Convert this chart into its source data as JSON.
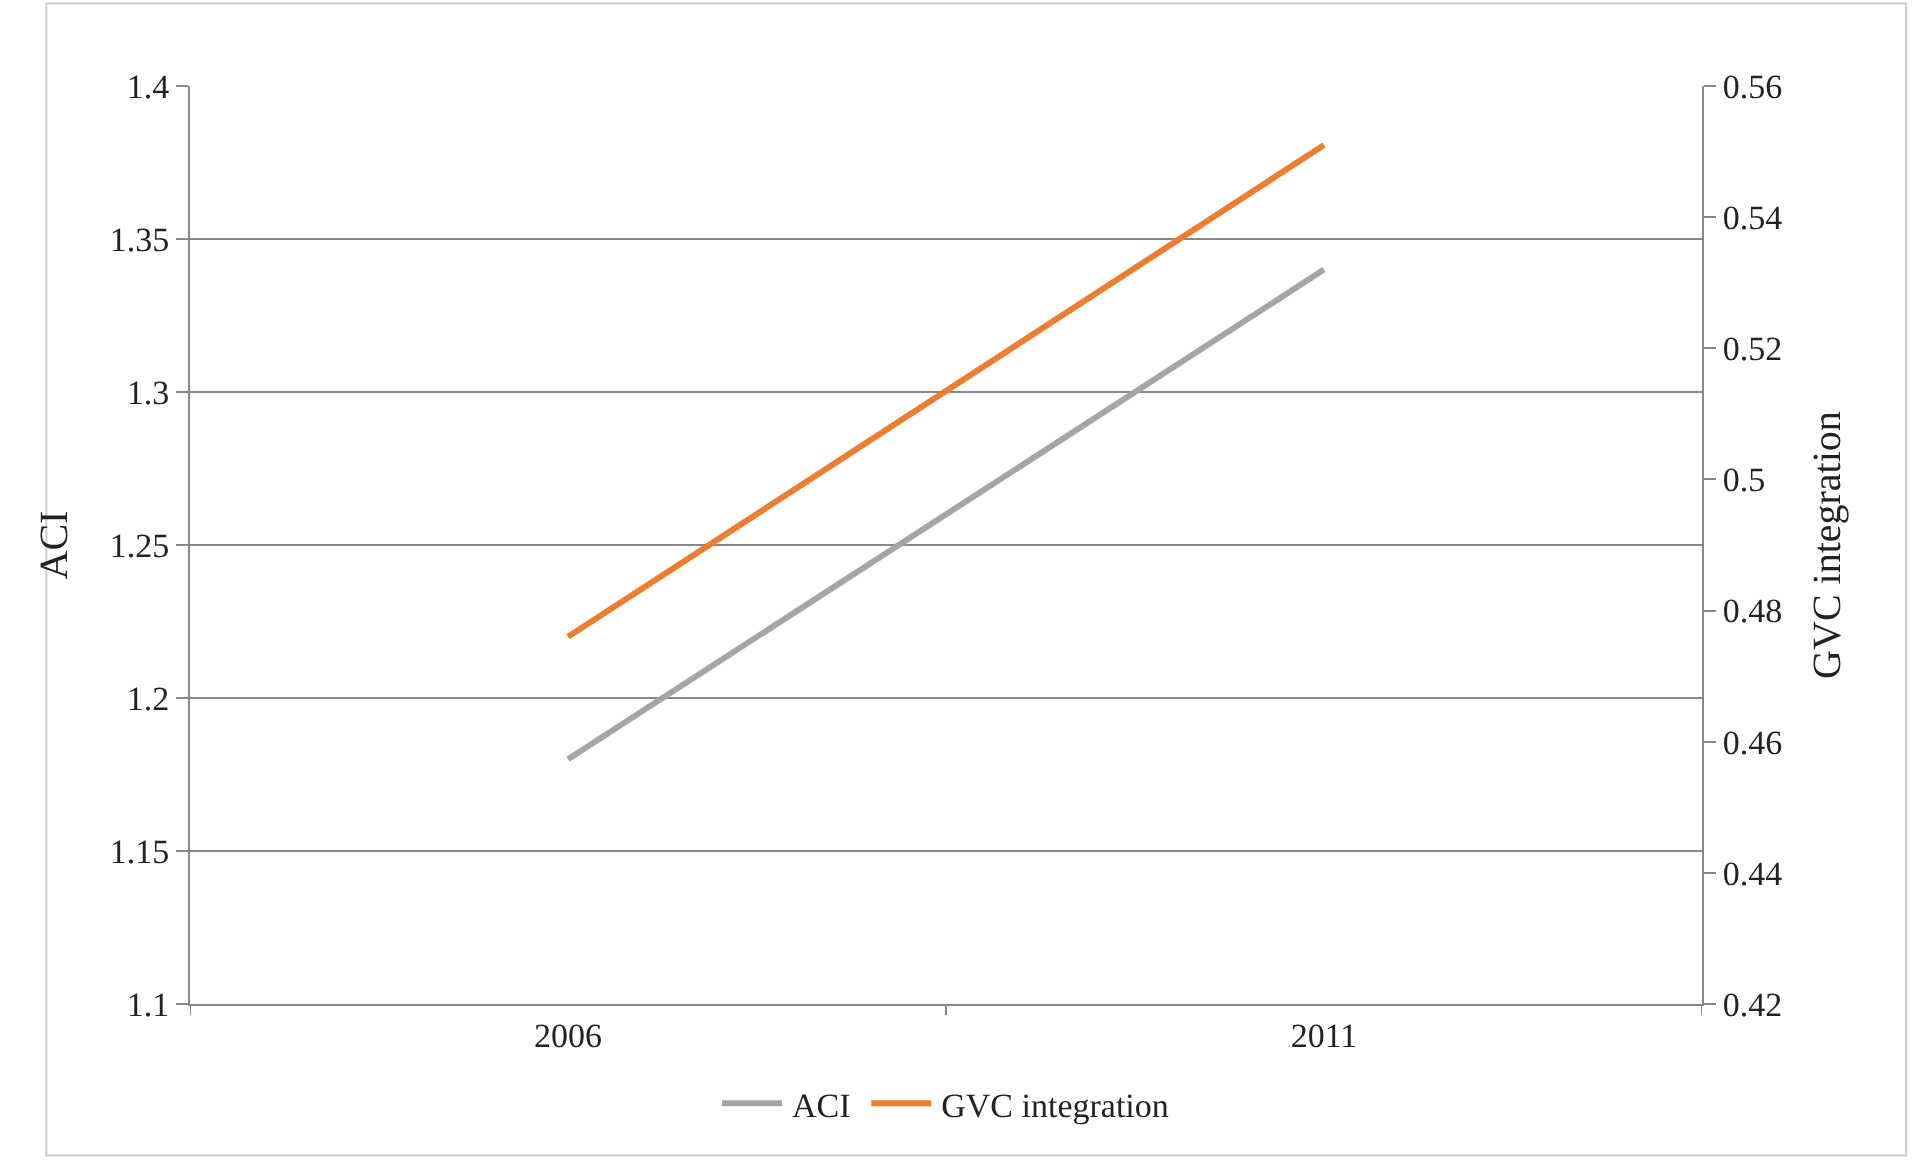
{
  "chart_data": {
    "type": "line",
    "ylabel": "ACI",
    "y2label": "GVC integration",
    "categories": [
      "2006",
      "2011"
    ],
    "series": [
      {
        "name": "ACI",
        "color": "#a5a5a5",
        "values": [
          1.18,
          1.34
        ]
      },
      {
        "name": "GVC integration",
        "color": "#ed7d31",
        "values": [
          0.476,
          0.551
        ],
        "axis": "y2"
      }
    ],
    "ylim": [
      1.1,
      1.4
    ],
    "yticks": [
      1.1,
      1.15,
      1.2,
      1.25,
      1.3,
      1.35,
      1.4
    ],
    "y2lim": [
      0.42,
      0.56
    ],
    "y2ticks": [
      0.42,
      0.44,
      0.46,
      0.48,
      0.5,
      0.52,
      0.54,
      0.56
    ],
    "grid": "y",
    "legend": "bottom",
    "marker": "none",
    "line_style": "solid"
  }
}
